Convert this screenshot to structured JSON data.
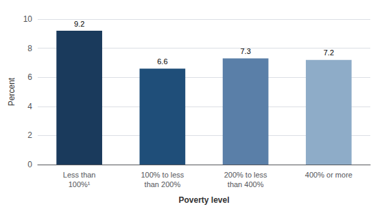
{
  "chart_data": {
    "type": "bar",
    "categories": [
      "Less than\n100%¹",
      "100% to less\nthan 200%",
      "200% to less\nthan 400%",
      "400% or more"
    ],
    "values": [
      9.2,
      6.6,
      7.3,
      7.2
    ],
    "colors": [
      "#1a3a5c",
      "#1f4e79",
      "#5a7fa8",
      "#8eacc8"
    ],
    "xlabel": "Poverty level",
    "ylabel": "Percent",
    "ylim": [
      0,
      10
    ],
    "yticks": [
      0,
      2,
      4,
      6,
      8,
      10
    ],
    "grid": true,
    "data_labels": true
  }
}
